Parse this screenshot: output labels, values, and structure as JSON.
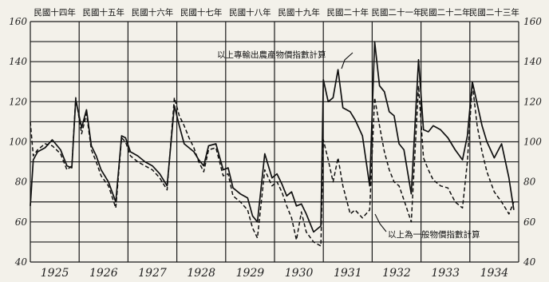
{
  "chart_data": {
    "type": "line",
    "title": "",
    "xlabel": "",
    "ylabel": "",
    "xlim": [
      1925,
      1935
    ],
    "ylim": [
      40,
      160
    ],
    "grid": true,
    "yticks": [
      40,
      60,
      80,
      100,
      120,
      140,
      160
    ],
    "xtick_labels": [
      "1925",
      "1926",
      "1927",
      "1928",
      "1929",
      "1930",
      "1931",
      "1932",
      "1933",
      "1934"
    ],
    "era_labels": [
      "民國十四年",
      "民國十五年",
      "民國十六年",
      "民國十七年",
      "民國十八年",
      "民國十九年",
      "民國二十年",
      "民國二十一年",
      "民國二十二年",
      "民國二十三年"
    ],
    "annotations": [
      {
        "text": "以上專輸出農產物價指數計算",
        "target_series": "solid"
      },
      {
        "text": "以上為一般物價指數計算",
        "target_series": "dashed"
      }
    ],
    "series": [
      {
        "style": "solid",
        "x": [
          1925.0,
          1925.06,
          1925.15,
          1925.3,
          1925.45,
          1925.62,
          1925.75,
          1925.85,
          1925.93,
          1926.05,
          1926.15,
          1926.25,
          1926.35,
          1926.45,
          1926.6,
          1926.75,
          1926.87,
          1926.95,
          1927.05,
          1927.2,
          1927.35,
          1927.5,
          1927.65,
          1927.8,
          1927.95,
          1928.05,
          1928.15,
          1928.25,
          1928.35,
          1928.45,
          1928.55,
          1928.65,
          1928.8,
          1928.95,
          1929.05,
          1929.15,
          1929.3,
          1929.45,
          1929.55,
          1929.65,
          1929.8,
          1929.95,
          1930.05,
          1930.15,
          1930.25,
          1930.35,
          1930.45,
          1930.55,
          1930.65,
          1930.8,
          1930.95,
          1931.0,
          1931.1,
          1931.2,
          1931.3,
          1931.4,
          1931.55,
          1931.65,
          1931.8,
          1931.95,
          1932.05,
          1932.15,
          1932.25,
          1932.35,
          1932.45,
          1932.55,
          1932.65,
          1932.8,
          1932.95,
          1933.05,
          1933.15,
          1933.25,
          1933.4,
          1933.55,
          1933.7,
          1933.85,
          1933.95,
          1934.05,
          1934.15,
          1934.25,
          1934.35,
          1934.5,
          1934.65,
          1934.8,
          1934.9
        ],
        "y": [
          68,
          91,
          95,
          97,
          101,
          96,
          88,
          87,
          121,
          107,
          116,
          98,
          93,
          86,
          80,
          70,
          103,
          102,
          95,
          93,
          90,
          88,
          84,
          78,
          118,
          108,
          99,
          97,
          95,
          91,
          88,
          98,
          99,
          86,
          87,
          77,
          74,
          72,
          63,
          60,
          94,
          82,
          84,
          79,
          73,
          75,
          68,
          69,
          64,
          55,
          58,
          131,
          120,
          122,
          136,
          117,
          115,
          111,
          103,
          78,
          150,
          128,
          125,
          115,
          113,
          99,
          96,
          74,
          141,
          106,
          105,
          108,
          106,
          102,
          96,
          91,
          103,
          130,
          119,
          108,
          100,
          92,
          99,
          82,
          66
        ]
      },
      {
        "style": "dashed",
        "x": [
          1925.0,
          1925.06,
          1925.15,
          1925.3,
          1925.45,
          1925.62,
          1925.75,
          1925.85,
          1925.93,
          1926.05,
          1926.15,
          1926.25,
          1926.35,
          1926.45,
          1926.6,
          1926.75,
          1926.87,
          1926.95,
          1927.05,
          1927.2,
          1927.35,
          1927.5,
          1927.65,
          1927.8,
          1927.95,
          1928.05,
          1928.15,
          1928.25,
          1928.35,
          1928.45,
          1928.55,
          1928.65,
          1928.8,
          1928.95,
          1929.05,
          1929.15,
          1929.3,
          1929.45,
          1929.55,
          1929.65,
          1929.8,
          1929.95,
          1930.05,
          1930.15,
          1930.25,
          1930.35,
          1930.45,
          1930.55,
          1930.65,
          1930.8,
          1930.95,
          1931.0,
          1931.1,
          1931.2,
          1931.3,
          1931.4,
          1931.55,
          1931.65,
          1931.8,
          1931.95,
          1932.05,
          1932.15,
          1932.25,
          1932.35,
          1932.45,
          1932.55,
          1932.65,
          1932.8,
          1932.95,
          1933.05,
          1933.15,
          1933.25,
          1933.4,
          1933.55,
          1933.7,
          1933.85,
          1933.95,
          1934.05,
          1934.15,
          1934.25,
          1934.35,
          1934.5,
          1934.65,
          1934.8,
          1934.9
        ],
        "y": [
          110,
          93,
          96,
          99,
          98,
          94,
          86,
          88,
          122,
          104,
          114,
          96,
          90,
          83,
          78,
          67,
          102,
          100,
          93,
          90,
          88,
          86,
          82,
          76,
          122,
          113,
          108,
          102,
          97,
          90,
          85,
          96,
          97,
          83,
          84,
          73,
          70,
          66,
          57,
          52,
          86,
          78,
          80,
          75,
          68,
          62,
          51,
          65,
          55,
          50,
          48,
          101,
          91,
          80,
          92,
          78,
          64,
          66,
          62,
          66,
          122,
          108,
          95,
          86,
          80,
          78,
          71,
          60,
          128,
          92,
          86,
          81,
          78,
          77,
          70,
          67,
          90,
          129,
          108,
          95,
          85,
          75,
          70,
          64,
          70
        ]
      }
    ]
  }
}
